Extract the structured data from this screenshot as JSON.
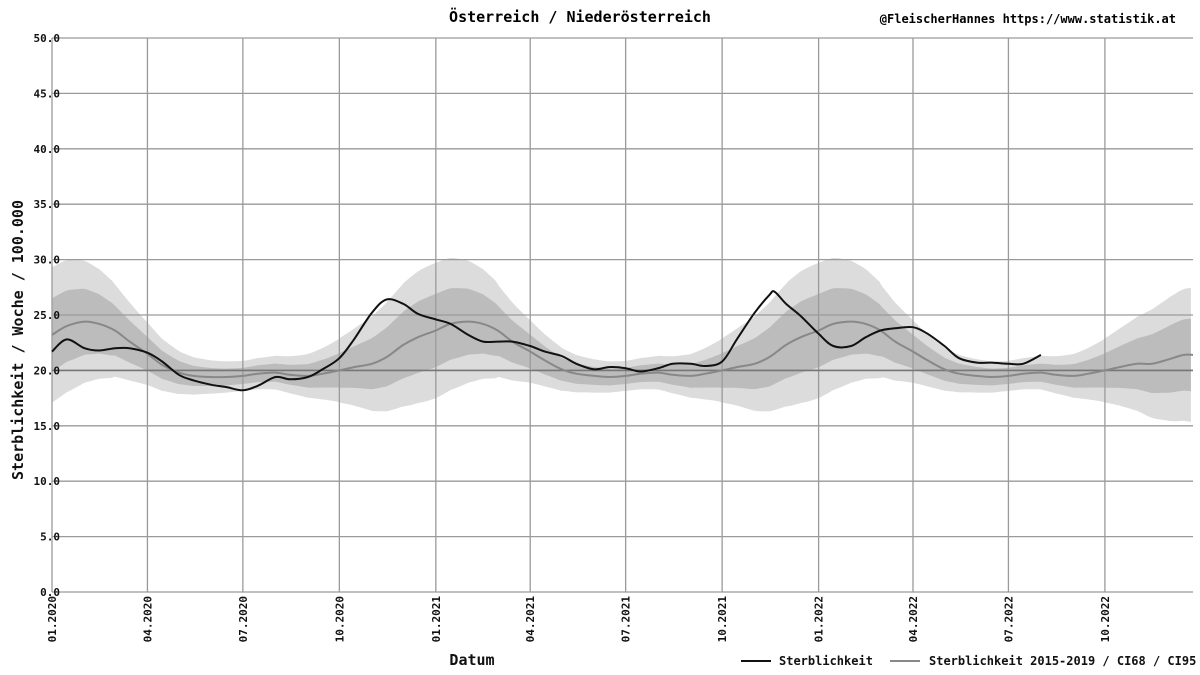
{
  "chart_data": {
    "type": "line",
    "title": "Österreich / Niederösterreich",
    "credit": "@FleischerHannes https://www.statistik.at",
    "xlabel": "Datum",
    "ylabel": "Sterblichkeit / Woche / 100.000",
    "ylim": [
      0,
      50
    ],
    "xlim": [
      "2020-01-01",
      "2022-12-24"
    ],
    "y_ticks": [
      "0.0",
      "5.0",
      "10.0",
      "15.0",
      "20.0",
      "25.0",
      "30.0",
      "35.0",
      "40.0",
      "45.0",
      "50.0"
    ],
    "x_ticks": [
      {
        "date": "2020-01-01",
        "label": "01.2020"
      },
      {
        "date": "2020-04-01",
        "label": "04.2020"
      },
      {
        "date": "2020-07-01",
        "label": "07.2020"
      },
      {
        "date": "2020-10-01",
        "label": "10.2020"
      },
      {
        "date": "2021-01-01",
        "label": "01.2021"
      },
      {
        "date": "2021-04-01",
        "label": "04.2021"
      },
      {
        "date": "2021-07-01",
        "label": "07.2021"
      },
      {
        "date": "2021-10-01",
        "label": "10.2021"
      },
      {
        "date": "2022-01-01",
        "label": "01.2022"
      },
      {
        "date": "2022-04-01",
        "label": "04.2022"
      },
      {
        "date": "2022-07-01",
        "label": "07.2022"
      },
      {
        "date": "2022-10-01",
        "label": "10.2022"
      }
    ],
    "grid": true,
    "reference_line": 20,
    "legend_position": "bottom-right",
    "colors": {
      "observed": "#111111",
      "baseline": "#888888",
      "ci68": "#b4b4b4",
      "ci95": "#dcdcdc",
      "grid": "#9a9a9a",
      "reference": "#777777"
    },
    "series": [
      {
        "name": "Sterblichkeit",
        "x": [
          "2020-01-01",
          "2020-01-15",
          "2020-02-01",
          "2020-02-15",
          "2020-03-01",
          "2020-03-15",
          "2020-04-01",
          "2020-04-15",
          "2020-05-01",
          "2020-05-15",
          "2020-06-01",
          "2020-06-15",
          "2020-07-01",
          "2020-07-15",
          "2020-08-01",
          "2020-08-15",
          "2020-09-01",
          "2020-09-15",
          "2020-10-01",
          "2020-10-15",
          "2020-11-01",
          "2020-11-15",
          "2020-12-01",
          "2020-12-15",
          "2021-01-01",
          "2021-01-15",
          "2021-02-01",
          "2021-02-15",
          "2021-03-01",
          "2021-03-15",
          "2021-04-01",
          "2021-04-15",
          "2021-05-01",
          "2021-05-15",
          "2021-06-01",
          "2021-06-15",
          "2021-07-01",
          "2021-07-15",
          "2021-08-01",
          "2021-08-15",
          "2021-09-01",
          "2021-09-15",
          "2021-10-01",
          "2021-10-15",
          "2021-11-01",
          "2021-11-15",
          "2021-11-20",
          "2021-12-01",
          "2021-12-15",
          "2022-01-01",
          "2022-01-15",
          "2022-02-01",
          "2022-02-15",
          "2022-03-01",
          "2022-03-15",
          "2022-04-01",
          "2022-04-15",
          "2022-05-01",
          "2022-05-15",
          "2022-06-01",
          "2022-06-15",
          "2022-07-01",
          "2022-07-15",
          "2022-08-01"
        ],
        "values": [
          21.7,
          22.8,
          22.0,
          21.8,
          22.0,
          22.0,
          21.6,
          20.8,
          19.6,
          19.1,
          18.7,
          18.5,
          18.2,
          18.6,
          19.4,
          19.2,
          19.4,
          20.1,
          21.1,
          22.8,
          25.2,
          26.4,
          26.0,
          25.1,
          24.6,
          24.2,
          23.2,
          22.6,
          22.6,
          22.6,
          22.2,
          21.7,
          21.3,
          20.6,
          20.1,
          20.3,
          20.2,
          19.9,
          20.2,
          20.6,
          20.6,
          20.4,
          20.8,
          22.8,
          25.2,
          26.8,
          27.1,
          26.0,
          24.9,
          23.3,
          22.2,
          22.2,
          23.0,
          23.6,
          23.8,
          23.9,
          23.3,
          22.2,
          21.1,
          20.7,
          20.7,
          20.6,
          20.6,
          21.4
        ]
      },
      {
        "name": "Sterblichkeit 2015-2019 / CI68 / CI95",
        "x": [
          "2020-01-01",
          "2020-01-15",
          "2020-02-01",
          "2020-02-15",
          "2020-03-01",
          "2020-03-15",
          "2020-04-01",
          "2020-04-15",
          "2020-05-01",
          "2020-05-15",
          "2020-06-01",
          "2020-06-15",
          "2020-07-01",
          "2020-07-15",
          "2020-08-01",
          "2020-08-15",
          "2020-09-01",
          "2020-09-15",
          "2020-10-01",
          "2020-10-15",
          "2020-11-01",
          "2020-11-15",
          "2020-12-01",
          "2020-12-15",
          "2021-01-01",
          "2021-01-15",
          "2021-02-01",
          "2021-02-15",
          "2021-03-01",
          "2021-03-15",
          "2021-04-01",
          "2021-04-15",
          "2021-05-01",
          "2021-05-15",
          "2021-06-01",
          "2021-06-15",
          "2021-07-01",
          "2021-07-15",
          "2021-08-01",
          "2021-08-15",
          "2021-09-01",
          "2021-09-15",
          "2021-10-01",
          "2021-10-15",
          "2021-11-01",
          "2021-11-15",
          "2021-12-01",
          "2021-12-15",
          "2022-01-01",
          "2022-01-15",
          "2022-02-01",
          "2022-02-15",
          "2022-03-01",
          "2022-03-15",
          "2022-04-01",
          "2022-04-15",
          "2022-05-01",
          "2022-05-15",
          "2022-06-01",
          "2022-06-15",
          "2022-07-01",
          "2022-07-15",
          "2022-08-01",
          "2022-08-15",
          "2022-09-01",
          "2022-09-15",
          "2022-10-01",
          "2022-10-15",
          "2022-11-01",
          "2022-11-15",
          "2022-12-01",
          "2022-12-15",
          "2022-12-24"
        ],
        "values": [
          23.2,
          24.0,
          24.4,
          24.2,
          23.6,
          22.6,
          21.5,
          20.5,
          19.8,
          19.5,
          19.4,
          19.4,
          19.5,
          19.7,
          19.8,
          19.6,
          19.5,
          19.7,
          20.0,
          20.3,
          20.6,
          21.2,
          22.3,
          23.0,
          23.6,
          24.2,
          24.4,
          24.2,
          23.6,
          22.6,
          21.7,
          20.9,
          20.1,
          19.7,
          19.5,
          19.4,
          19.5,
          19.7,
          19.8,
          19.6,
          19.5,
          19.7,
          20.0,
          20.3,
          20.6,
          21.2,
          22.3,
          23.0,
          23.6,
          24.2,
          24.4,
          24.2,
          23.6,
          22.6,
          21.7,
          20.9,
          20.1,
          19.7,
          19.5,
          19.4,
          19.5,
          19.7,
          19.8,
          19.6,
          19.5,
          19.7,
          20.0,
          20.3,
          20.6,
          20.6,
          21.0,
          21.4,
          21.4
        ]
      }
    ]
  },
  "legend": {
    "observed_label": "Sterblichkeit",
    "baseline_label": "Sterblichkeit 2015-2019 / CI68 / CI95"
  }
}
